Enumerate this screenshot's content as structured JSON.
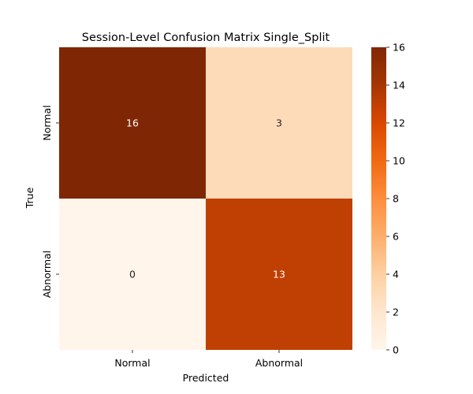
{
  "chart_data": {
    "type": "heatmap",
    "title": "Session-Level Confusion Matrix  Single_Split",
    "xlabel": "Predicted",
    "ylabel": "True",
    "x_categories": [
      "Normal",
      "Abnormal"
    ],
    "y_categories": [
      "Normal",
      "Abnormal"
    ],
    "values": [
      [
        16,
        3
      ],
      [
        0,
        13
      ]
    ],
    "colormap": "Oranges",
    "colorbar": {
      "min": 0,
      "max": 16,
      "ticks": [
        0,
        2,
        4,
        6,
        8,
        10,
        12,
        14,
        16
      ],
      "tick_labels": [
        "0",
        "2",
        "4",
        "6",
        "8",
        "10",
        "12",
        "14",
        "16"
      ]
    },
    "annotation_colors": {
      "light_text": "#ffffff",
      "dark_text": "#262626"
    }
  }
}
